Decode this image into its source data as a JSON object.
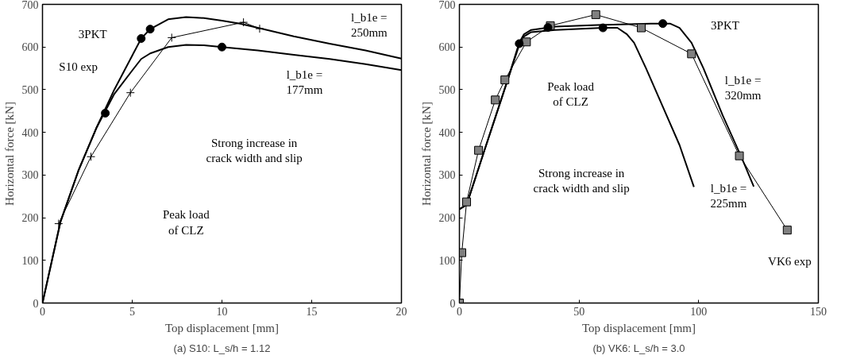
{
  "chart_data": [
    {
      "type": "line",
      "title": "(a) S10: L_s/h = 1.12",
      "xlabel": "Top displacement [mm]",
      "ylabel": "Horizontal force [kN]",
      "xlim": [
        0,
        20
      ],
      "ylim": [
        0,
        700
      ],
      "xticks": [
        0,
        5,
        10,
        15,
        20
      ],
      "yticks": [
        0,
        100,
        200,
        300,
        400,
        500,
        600,
        700
      ],
      "grid": false,
      "series": [
        {
          "color": "#000000",
          "marker": "none",
          "x": [
            0,
            1,
            2,
            3,
            4,
            5,
            5.5,
            6,
            7,
            8,
            9,
            10,
            11,
            12,
            14,
            16,
            18,
            20
          ],
          "values": [
            0,
            190,
            310,
            410,
            500,
            580,
            620,
            642,
            665,
            670,
            668,
            662,
            655,
            645,
            625,
            608,
            592,
            573
          ]
        },
        {
          "color": "#000000",
          "marker": "none",
          "x": [
            0,
            1,
            2,
            3,
            4,
            5,
            5.5,
            6,
            7,
            8,
            9,
            10,
            12,
            14,
            16,
            18,
            20
          ],
          "values": [
            0,
            190,
            310,
            410,
            490,
            545,
            572,
            585,
            600,
            605,
            604,
            600,
            592,
            582,
            572,
            560,
            546
          ]
        },
        {
          "color": "#000000",
          "marker": "cross",
          "x": [
            0.9,
            2.7,
            4.9,
            7.2,
            11.2,
            12.1
          ],
          "values": [
            186,
            343,
            493,
            622,
            658,
            643
          ]
        },
        {
          "type": "scatter",
          "color": "#000000",
          "marker": "circle",
          "x": [
            3.5,
            5.5,
            6,
            10
          ],
          "values": [
            445,
            620,
            642,
            600
          ]
        }
      ],
      "annotations": [
        "3PKT",
        "S10 exp",
        "l_b1e =\n250mm",
        "l_b1e =\n177mm",
        "Strong increase in\ncrack width and slip",
        "Peak load\nof CLZ"
      ]
    },
    {
      "type": "line",
      "title": "(b) VK6: L_s/h = 3.0",
      "xlabel": "Top displacement [mm]",
      "ylabel": "Horizontal force [kN]",
      "xlim": [
        0,
        150
      ],
      "ylim": [
        0,
        700
      ],
      "xticks": [
        0,
        50,
        100,
        150
      ],
      "yticks": [
        0,
        100,
        200,
        300,
        400,
        500,
        600,
        700
      ],
      "grid": false,
      "series": [
        {
          "color": "#000000",
          "marker": "none",
          "x": [
            0,
            3,
            10,
            20,
            25,
            27,
            30,
            40,
            60,
            80,
            88,
            92,
            97,
            102,
            110,
            118,
            123
          ],
          "values": [
            220,
            230,
            350,
            520,
            610,
            630,
            640,
            648,
            652,
            655,
            655,
            645,
            610,
            550,
            440,
            340,
            273
          ]
        },
        {
          "color": "#000000",
          "marker": "none",
          "x": [
            0,
            3,
            10,
            20,
            25,
            27,
            30,
            40,
            60,
            66,
            70,
            73,
            78,
            85,
            92,
            98
          ],
          "values": [
            220,
            230,
            350,
            520,
            605,
            625,
            635,
            640,
            645,
            645,
            630,
            610,
            550,
            460,
            370,
            272
          ]
        },
        {
          "color": "#808080",
          "marker": "square",
          "x": [
            0,
            1,
            3,
            8,
            15,
            19,
            28,
            38,
            57,
            76,
            97,
            117,
            137
          ],
          "values": [
            0,
            118,
            237,
            358,
            476,
            523,
            612,
            650,
            676,
            645,
            584,
            345,
            171
          ]
        },
        {
          "type": "scatter",
          "color": "#000000",
          "marker": "circle",
          "x": [
            25,
            37,
            60,
            85
          ],
          "values": [
            608,
            646,
            645,
            655
          ]
        }
      ],
      "annotations": [
        "3PKT",
        "l_b1e =\n320mm",
        "l_b1e =\n225mm",
        "Peak load\nof CLZ",
        "Strong increase in\ncrack width and slip",
        "VK6 exp"
      ]
    }
  ]
}
